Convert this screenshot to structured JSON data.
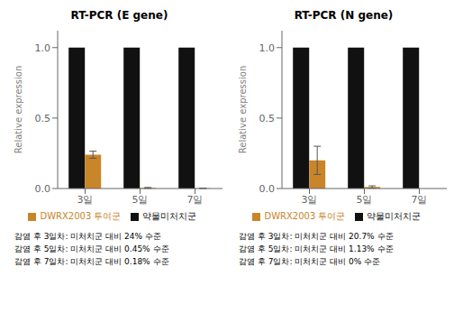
{
  "chart_data": [
    {
      "type": "bar",
      "title": "RT-PCR (E gene)",
      "y_label": "Relative expression",
      "categories": [
        "3일",
        "5일",
        "7일"
      ],
      "series": [
        {
          "name": "약물미처치군",
          "color": "#111111",
          "values": [
            1.0,
            1.0,
            1.0
          ]
        },
        {
          "name": "DWRX2003 투여군",
          "color": "#C8852A",
          "values": [
            0.24,
            0.0045,
            0.0018
          ],
          "errors": [
            0.025,
            0.003,
            0.001
          ]
        }
      ],
      "ylim": [
        0,
        1.12
      ],
      "yticks": [
        {
          "value": 0,
          "label": "0.0"
        },
        0.5,
        {
          "value": 1,
          "label": "1.0"
        }
      ],
      "legend": "bottom",
      "annotations": [
        "감염 후 3일차: 미처치군 대비 24% 수준",
        "감염 후 5일차: 미처치군 대비 0.45% 수준",
        "감염 후 7일차: 미처치군 대비 0.18% 수준"
      ]
    },
    {
      "type": "bar",
      "title": "RT-PCR (N gene)",
      "y_label": "Relative expression",
      "categories": [
        "3일",
        "5일",
        "7일"
      ],
      "series": [
        {
          "name": "약물미처치군",
          "color": "#111111",
          "values": [
            1.0,
            1.0,
            1.0
          ]
        },
        {
          "name": "DWRX2003 투여군",
          "color": "#C8852A",
          "values": [
            0.2,
            0.011,
            0.0
          ],
          "errors": [
            0.1,
            0.008,
            0.0005
          ]
        }
      ],
      "ylim": [
        0,
        1.12
      ],
      "yticks": [
        {
          "value": 0,
          "label": "0.0"
        },
        0.5,
        {
          "value": 1,
          "label": "1.0"
        }
      ],
      "legend": "bottom",
      "annotations": [
        "감염 후 3일차: 미처치군 대비 20.7% 수준",
        "감염 후 5일차: 미처치군 대비 1.13% 수준",
        "감염 후 7일차: 미처치군 대비 0% 수준"
      ]
    }
  ]
}
